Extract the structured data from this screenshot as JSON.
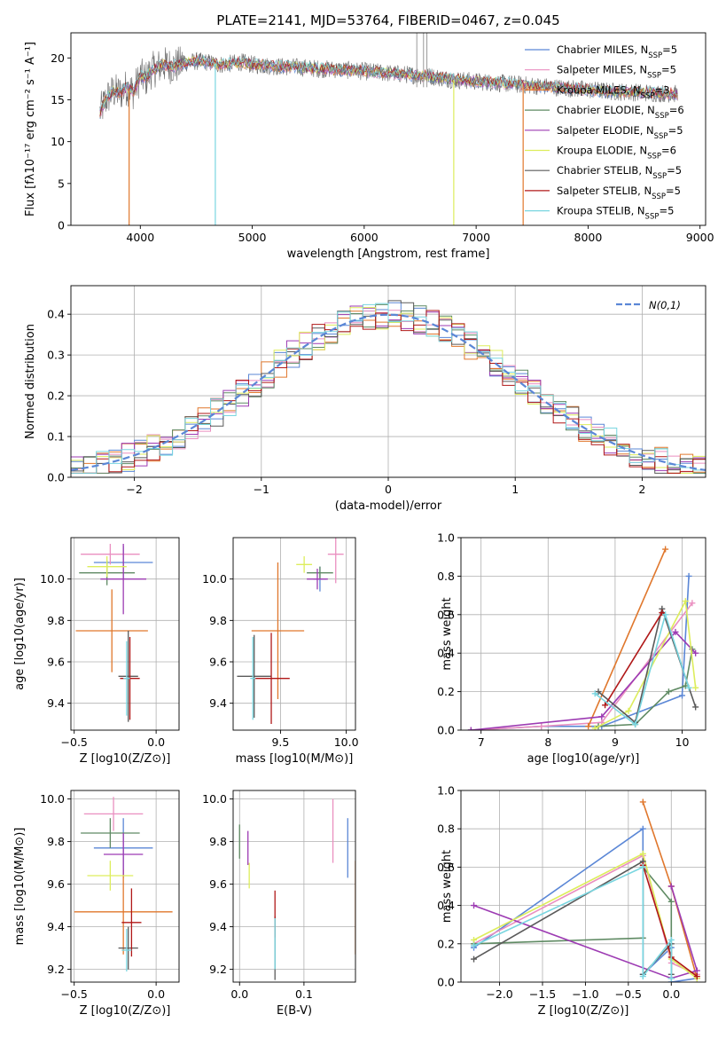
{
  "title": "PLATE=2141, MJD=53764, FIBERID=0467, z=0.045",
  "models": [
    {
      "name": "Chabrier MILES",
      "nssp": "5",
      "color": "#5b87d6"
    },
    {
      "name": "Salpeter MILES",
      "nssp": "5",
      "color": "#ea8fc0"
    },
    {
      "name": "Kroupa MILES",
      "nssp": "3",
      "color": "#e0772c"
    },
    {
      "name": "Chabrier ELODIE",
      "nssp": "6",
      "color": "#5f8a63"
    },
    {
      "name": "Salpeter ELODIE",
      "nssp": "5",
      "color": "#9d3bb3"
    },
    {
      "name": "Kroupa ELODIE",
      "nssp": "6",
      "color": "#dded5c"
    },
    {
      "name": "Chabrier STELIB",
      "nssp": "5",
      "color": "#5a5a5a"
    },
    {
      "name": "Salpeter STELIB",
      "nssp": "5",
      "color": "#b01818"
    },
    {
      "name": "Kroupa STELIB",
      "nssp": "5",
      "color": "#79d6e0"
    }
  ],
  "nssp_prefix": "N",
  "nssp_sub": "SSP",
  "chart_data": [
    {
      "type": "line",
      "title": "PLATE=2141, MJD=53764, FIBERID=0467, z=0.045",
      "xlabel": "wavelength [Angstrom, rest frame]",
      "ylabel": "Flux [fλ10⁻¹⁷ erg cm⁻² s⁻¹ A⁻¹]",
      "xlim": [
        3380,
        9050
      ],
      "ylim": [
        0,
        23
      ],
      "xticks": [
        4000,
        5000,
        6000,
        7000,
        8000,
        9000
      ],
      "yticks": [
        0,
        5,
        10,
        15,
        20
      ],
      "legend": "top-right",
      "spectrum": {
        "x": [
          3640,
          3700,
          3760,
          3820,
          3880,
          3940,
          4000,
          4050,
          4100,
          4150,
          4200,
          4300,
          4400,
          4500,
          4600,
          4700,
          4800,
          4900,
          5000,
          5200,
          5400,
          5600,
          5800,
          6000,
          6200,
          6400,
          6600,
          6800,
          7000,
          7200,
          7400,
          7600,
          7800,
          8000,
          8200,
          8400,
          8600,
          8800
        ],
        "y": [
          13.5,
          15.2,
          16.0,
          15.8,
          16.5,
          16.0,
          17.8,
          17.5,
          18.5,
          18.8,
          19.2,
          19.0,
          19.4,
          19.6,
          19.5,
          19.2,
          19.3,
          19.5,
          19.2,
          19.0,
          18.9,
          18.7,
          18.6,
          18.4,
          18.2,
          18.0,
          17.8,
          17.4,
          17.2,
          17.0,
          16.8,
          16.6,
          16.4,
          16.2,
          16.0,
          15.9,
          15.8,
          15.7
        ]
      },
      "dips": [
        {
          "x": 3900,
          "y": 0,
          "model": 2
        },
        {
          "x": 4670,
          "y": 0,
          "model": 8
        },
        {
          "x": 6800,
          "y": 0,
          "model": 5
        },
        {
          "x": 7420,
          "y": 0,
          "model": 2
        }
      ]
    },
    {
      "type": "histogram",
      "xlabel": "(data-model)/error",
      "ylabel": "Normed distribution",
      "xlim": [
        -2.5,
        2.5
      ],
      "ylim": [
        0,
        0.47
      ],
      "xticks": [
        -2,
        -1,
        0,
        1,
        2
      ],
      "yticks": [
        0.0,
        0.1,
        0.2,
        0.3,
        0.4
      ],
      "legend_label": "N(0,1)",
      "bin_width": 0.1,
      "bin_start": -2.5
    },
    {
      "type": "errorbar",
      "xlabel": "Z [log10(Z/Z⊙)]",
      "ylabel": "age  [log10(age/yr)]",
      "xlim": [
        -0.52,
        0.14
      ],
      "ylim": [
        9.27,
        10.2
      ],
      "xticks": [
        -0.5,
        0.0
      ],
      "yticks": [
        9.4,
        9.6,
        9.8,
        10.0
      ],
      "points": [
        {
          "x": -0.2,
          "xerr": 0.18,
          "y": 10.08,
          "yerr": 0.08,
          "model": 0
        },
        {
          "x": -0.28,
          "xerr": 0.18,
          "y": 10.12,
          "yerr": 0.05,
          "model": 1
        },
        {
          "x": -0.27,
          "xerr": 0.22,
          "y": 9.75,
          "yerr": 0.2,
          "model": 2
        },
        {
          "x": -0.3,
          "xerr": 0.17,
          "y": 10.03,
          "yerr": 0.06,
          "model": 3
        },
        {
          "x": -0.2,
          "xerr": 0.14,
          "y": 10.0,
          "yerr": 0.17,
          "model": 4
        },
        {
          "x": -0.3,
          "xerr": 0.12,
          "y": 10.06,
          "yerr": 0.05,
          "model": 5
        },
        {
          "x": -0.17,
          "xerr": 0.06,
          "y": 9.53,
          "yerr": 0.22,
          "model": 6
        },
        {
          "x": -0.16,
          "xerr": 0.06,
          "y": 9.52,
          "yerr": 0.2,
          "model": 7
        },
        {
          "x": -0.18,
          "xerr": 0.02,
          "y": 9.52,
          "yerr": 0.18,
          "model": 8
        }
      ]
    },
    {
      "type": "errorbar",
      "xlabel": "mass [log10(M/M⊙)]",
      "ylabel": "",
      "xlim": [
        9.14,
        10.07
      ],
      "ylim": [
        9.27,
        10.2
      ],
      "xticks": [
        9.5,
        10.0
      ],
      "yticks": [
        9.4,
        9.6,
        9.8,
        10.0
      ],
      "points": [
        {
          "x": 9.8,
          "xerr": 0.05,
          "y": 10.0,
          "yerr": 0.06,
          "model": 0
        },
        {
          "x": 9.92,
          "xerr": 0.06,
          "y": 10.12,
          "yerr": 0.14,
          "model": 1
        },
        {
          "x": 9.48,
          "xerr": 0.2,
          "y": 9.75,
          "yerr": 0.33,
          "model": 2
        },
        {
          "x": 9.8,
          "xerr": 0.1,
          "y": 10.03,
          "yerr": 0.03,
          "model": 3
        },
        {
          "x": 9.78,
          "xerr": 0.08,
          "y": 10.0,
          "yerr": 0.05,
          "model": 4
        },
        {
          "x": 9.68,
          "xerr": 0.06,
          "y": 10.07,
          "yerr": 0.04,
          "model": 5
        },
        {
          "x": 9.3,
          "xerr": 0.13,
          "y": 9.53,
          "yerr": 0.2,
          "model": 6
        },
        {
          "x": 9.43,
          "xerr": 0.14,
          "y": 9.52,
          "yerr": 0.22,
          "model": 7
        },
        {
          "x": 9.29,
          "xerr": 0.02,
          "y": 9.52,
          "yerr": 0.2,
          "model": 8
        }
      ]
    },
    {
      "type": "line",
      "xlabel": "age  [log10(age/yr)]",
      "ylabel": "mass weight",
      "xlim": [
        6.7,
        10.35
      ],
      "ylim": [
        0,
        1
      ],
      "xticks": [
        7,
        8,
        9,
        10
      ],
      "yticks": [
        0.0,
        0.2,
        0.4,
        0.6,
        0.8,
        1.0
      ],
      "series": [
        {
          "model": 0,
          "x": [
            6.85,
            7.9,
            8.8,
            10.0,
            10.1
          ],
          "y": [
            0.0,
            0.02,
            0.02,
            0.18,
            0.8
          ]
        },
        {
          "model": 1,
          "x": [
            6.85,
            7.9,
            8.8,
            10.15
          ],
          "y": [
            0.0,
            0.02,
            0.04,
            0.66
          ]
        },
        {
          "model": 2,
          "x": [
            8.6,
            9.75
          ],
          "y": [
            0.02,
            0.94
          ]
        },
        {
          "model": 3,
          "x": [
            8.75,
            9.3,
            9.8,
            10.05,
            10.15
          ],
          "y": [
            0.02,
            0.03,
            0.2,
            0.23,
            0.42
          ]
        },
        {
          "model": 4,
          "x": [
            6.85,
            8.8,
            9.9,
            10.2
          ],
          "y": [
            0.0,
            0.07,
            0.51,
            0.4
          ]
        },
        {
          "model": 5,
          "x": [
            8.7,
            9.2,
            10.05,
            10.2
          ],
          "y": [
            0.01,
            0.1,
            0.67,
            0.22
          ]
        },
        {
          "model": 6,
          "x": [
            8.75,
            9.3,
            9.7,
            10.2
          ],
          "y": [
            0.2,
            0.04,
            0.63,
            0.12
          ]
        },
        {
          "model": 7,
          "x": [
            8.85,
            9.7
          ],
          "y": [
            0.13,
            0.61
          ]
        },
        {
          "model": 8,
          "x": [
            8.7,
            9.3,
            9.75,
            10.1
          ],
          "y": [
            0.19,
            0.03,
            0.6,
            0.22
          ]
        }
      ]
    },
    {
      "type": "errorbar",
      "xlabel": "Z [log10(Z/Z⊙)]",
      "ylabel": "mass [log10(M/M⊙)]",
      "xlim": [
        -0.52,
        0.14
      ],
      "ylim": [
        9.14,
        10.04
      ],
      "xticks": [
        -0.5,
        0.0
      ],
      "yticks": [
        9.2,
        9.4,
        9.6,
        9.8,
        10.0
      ],
      "points": [
        {
          "x": -0.2,
          "xerr": 0.18,
          "y": 9.77,
          "yerr": 0.14,
          "model": 0
        },
        {
          "x": -0.26,
          "xerr": 0.18,
          "y": 9.93,
          "yerr": 0.08,
          "model": 1
        },
        {
          "x": -0.2,
          "xerr": 0.3,
          "y": 9.47,
          "yerr": 0.2,
          "model": 2
        },
        {
          "x": -0.28,
          "xerr": 0.18,
          "y": 9.84,
          "yerr": 0.07,
          "model": 3
        },
        {
          "x": -0.2,
          "xerr": 0.12,
          "y": 9.74,
          "yerr": 0.1,
          "model": 4
        },
        {
          "x": -0.28,
          "xerr": 0.14,
          "y": 9.64,
          "yerr": 0.07,
          "model": 5
        },
        {
          "x": -0.17,
          "xerr": 0.06,
          "y": 9.3,
          "yerr": 0.1,
          "model": 6
        },
        {
          "x": -0.15,
          "xerr": 0.06,
          "y": 9.42,
          "yerr": 0.16,
          "model": 7
        },
        {
          "x": -0.18,
          "xerr": 0.03,
          "y": 9.29,
          "yerr": 0.1,
          "model": 8
        }
      ]
    },
    {
      "type": "errorbar",
      "xlabel": "E(B-V)",
      "ylabel": "",
      "xlim": [
        -0.01,
        0.18
      ],
      "ylim": [
        9.14,
        10.04
      ],
      "xticks": [
        0.0,
        0.1
      ],
      "yticks": [
        9.2,
        9.4,
        9.6,
        9.8,
        10.0
      ],
      "points": [
        {
          "x": 0.168,
          "xerr": 0,
          "y": 9.77,
          "yerr": 0.14,
          "model": 0
        },
        {
          "x": 0.145,
          "xerr": 0,
          "y": 9.85,
          "yerr": 0.15,
          "model": 1
        },
        {
          "x": 0.18,
          "xerr": 0,
          "y": 9.49,
          "yerr": 0.22,
          "model": 2
        },
        {
          "x": 0.0,
          "xerr": 0,
          "y": 9.8,
          "yerr": 0.08,
          "model": 3
        },
        {
          "x": 0.013,
          "xerr": 0,
          "y": 9.77,
          "yerr": 0.08,
          "model": 4
        },
        {
          "x": 0.015,
          "xerr": 0,
          "y": 9.64,
          "yerr": 0.06,
          "model": 5
        },
        {
          "x": 0.055,
          "xerr": 0,
          "y": 9.3,
          "yerr": 0.15,
          "model": 6
        },
        {
          "x": 0.055,
          "xerr": 0,
          "y": 9.46,
          "yerr": 0.11,
          "model": 7
        },
        {
          "x": 0.055,
          "xerr": 0,
          "y": 9.32,
          "yerr": 0.12,
          "model": 8
        }
      ]
    },
    {
      "type": "line",
      "xlabel": "Z [log10(Z/Z⊙)]",
      "ylabel": "mass weight",
      "xlim": [
        -2.45,
        0.4
      ],
      "ylim": [
        0,
        1
      ],
      "xticks": [
        -2.0,
        -1.5,
        -1.0,
        -0.5,
        0.0
      ],
      "yticks": [
        0.0,
        0.2,
        0.4,
        0.6,
        0.8,
        1.0
      ],
      "series": [
        {
          "model": 0,
          "x": [
            -2.3,
            -0.33,
            -0.33,
            0.0,
            0.0,
            0.3
          ],
          "y": [
            0.18,
            0.8,
            0.04,
            0.18,
            0.0,
            0.02
          ]
        },
        {
          "model": 1,
          "x": [
            -2.3,
            -0.33,
            0.0,
            0.3
          ],
          "y": [
            0.2,
            0.66,
            0.1,
            0.04
          ]
        },
        {
          "model": 2,
          "x": [
            -0.33,
            0.0,
            0.3
          ],
          "y": [
            0.94,
            0.5,
            0.02
          ]
        },
        {
          "model": 3,
          "x": [
            -2.3,
            -0.33,
            -0.33,
            0.0,
            0.0
          ],
          "y": [
            0.2,
            0.23,
            0.6,
            0.42,
            0.02
          ]
        },
        {
          "model": 4,
          "x": [
            -2.3,
            0.0,
            0.3,
            0.0
          ],
          "y": [
            0.4,
            0.02,
            0.06,
            0.5
          ]
        },
        {
          "model": 5,
          "x": [
            -2.3,
            -0.33,
            0.0,
            0.3
          ],
          "y": [
            0.22,
            0.67,
            0.12,
            0.02
          ]
        },
        {
          "model": 6,
          "x": [
            -2.3,
            -0.33,
            -0.33,
            0.0,
            0.0
          ],
          "y": [
            0.12,
            0.63,
            0.04,
            0.2,
            0.04
          ]
        },
        {
          "model": 7,
          "x": [
            -0.33,
            0.0,
            0.3
          ],
          "y": [
            0.61,
            0.13,
            0.03
          ]
        },
        {
          "model": 8,
          "x": [
            -2.3,
            -0.33,
            -0.33,
            0.0,
            0.0
          ],
          "y": [
            0.19,
            0.6,
            0.03,
            0.22,
            0.02
          ]
        }
      ]
    }
  ]
}
